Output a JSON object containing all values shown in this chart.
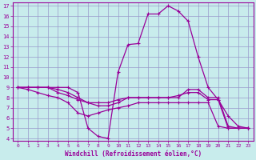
{
  "xlabel": "Windchill (Refroidissement éolien,°C)",
  "bg_color": "#c8ecec",
  "line_color": "#990099",
  "grid_color": "#9999cc",
  "xlim": [
    -0.5,
    23.5
  ],
  "ylim": [
    3.8,
    17.3
  ],
  "yticks": [
    4,
    5,
    6,
    7,
    8,
    9,
    10,
    11,
    12,
    13,
    14,
    15,
    16,
    17
  ],
  "xticks": [
    0,
    1,
    2,
    3,
    4,
    5,
    6,
    7,
    8,
    9,
    10,
    11,
    12,
    13,
    14,
    15,
    16,
    17,
    18,
    19,
    20,
    21,
    22,
    23
  ],
  "lines": [
    {
      "x": [
        0,
        1,
        2,
        3,
        4,
        5,
        6,
        7,
        8,
        9,
        10,
        11,
        12,
        13,
        14,
        15,
        16,
        17,
        18,
        19,
        20,
        21,
        22,
        23
      ],
      "y": [
        9,
        9,
        9,
        9,
        9,
        9,
        8.5,
        5,
        4.2,
        4.0,
        10.5,
        13.2,
        13.3,
        16.2,
        16.2,
        17.0,
        16.5,
        15.5,
        12,
        9,
        7.8,
        6.2,
        5.2,
        5.0
      ]
    },
    {
      "x": [
        0,
        1,
        2,
        3,
        4,
        5,
        6,
        7,
        8,
        9,
        10,
        11,
        12,
        13,
        14,
        15,
        16,
        17,
        18,
        19,
        20,
        21,
        22,
        23
      ],
      "y": [
        9,
        9,
        9,
        9,
        8.8,
        8.5,
        8.0,
        7.5,
        7.2,
        7.2,
        7.5,
        8.0,
        8.0,
        8.0,
        8.0,
        8.0,
        8.0,
        8.8,
        8.8,
        8.0,
        8.0,
        5.2,
        5.0,
        5.0
      ]
    },
    {
      "x": [
        0,
        1,
        2,
        3,
        4,
        5,
        6,
        7,
        8,
        9,
        10,
        11,
        12,
        13,
        14,
        15,
        16,
        17,
        18,
        19,
        20,
        21,
        22,
        23
      ],
      "y": [
        9,
        9,
        9,
        9,
        8.5,
        8.2,
        7.8,
        7.5,
        7.5,
        7.5,
        7.8,
        8.0,
        8.0,
        8.0,
        8.0,
        8.0,
        8.2,
        8.5,
        8.5,
        7.8,
        7.8,
        5.0,
        5.0,
        5.0
      ]
    },
    {
      "x": [
        0,
        1,
        2,
        3,
        4,
        5,
        6,
        7,
        8,
        9,
        10,
        11,
        12,
        13,
        14,
        15,
        16,
        17,
        18,
        19,
        20,
        21,
        22,
        23
      ],
      "y": [
        9,
        8.8,
        8.5,
        8.2,
        8.0,
        7.5,
        6.5,
        6.2,
        6.5,
        6.8,
        7.0,
        7.2,
        7.5,
        7.5,
        7.5,
        7.5,
        7.5,
        7.5,
        7.5,
        7.5,
        5.2,
        5.0,
        5.0,
        5.0
      ]
    }
  ]
}
